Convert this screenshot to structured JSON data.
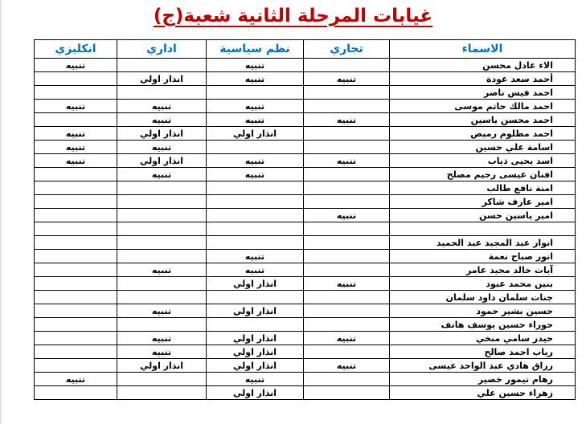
{
  "page": {
    "title": "غيابات المرحلة الثانية شعبة(ج)"
  },
  "colors": {
    "title_red": "#C00000",
    "header_blue": "#0070C0",
    "border_black": "#000000",
    "background": "#FFFFFF"
  },
  "status_labels": {
    "notice": "تنبيه",
    "first_warning": "انذار اولي"
  },
  "table": {
    "headers": [
      "الاسماء",
      "تجاري",
      "نظم سياسية",
      "اداري",
      "انكليزي"
    ],
    "rows": [
      [
        "الاء عادل محسن",
        "",
        "تنبيه",
        "",
        "تنبيه"
      ],
      [
        "أحمد سعد عودة",
        "تنبيه",
        "تنبيه",
        "انذار اولي",
        ""
      ],
      [
        "احمد قيس ناصر",
        "",
        "",
        "",
        ""
      ],
      [
        "احمد مالك حاتم موسى",
        "",
        "تنبيه",
        "تنبيه",
        "تنبيه"
      ],
      [
        "احمد محسن ياسين",
        "تنبيه",
        "تنبيه",
        "تنبيه",
        ""
      ],
      [
        "احمد مظلوم رميض",
        "",
        "انذار اولي",
        "انذار اولي",
        "تنبيه"
      ],
      [
        "اسامة علي حسين",
        "",
        "",
        "تنبيه",
        "تنبيه"
      ],
      [
        "اسد يحيى ذياب",
        "تنبيه",
        "تنبيه",
        "انذار اولي",
        "تنبيه"
      ],
      [
        "افنان عيسى رحيم مصلح",
        "",
        "تنبيه",
        "تنبيه",
        ""
      ],
      [
        "امنة نافع طالب",
        "",
        "",
        "",
        ""
      ],
      [
        "امير عارف شاكر",
        "",
        "",
        "",
        ""
      ],
      [
        "امير ياسين حسن",
        "تنبيه",
        "",
        "",
        ""
      ],
      [
        "",
        "",
        "",
        "",
        ""
      ],
      [
        "انوار عبد المجيد عبد الحميد",
        "",
        "",
        "",
        ""
      ],
      [
        "انور صباح نعمة",
        "",
        "تنبيه",
        "",
        ""
      ],
      [
        "آيات خالد مجيد عامر",
        "",
        "تنبيه",
        "تنبيه",
        ""
      ],
      [
        "بنين محمد عبود",
        "تنبيه",
        "انذار اولي",
        "",
        ""
      ],
      [
        "جنات سلمان داود سلمان",
        "",
        "",
        "",
        ""
      ],
      [
        "حسين بشير حمود",
        "",
        "انذار اولي",
        "تنبيه",
        ""
      ],
      [
        "حوراء حسين يوسف هاتف",
        "",
        "",
        "",
        ""
      ],
      [
        "حيدر سامي منخي",
        "تنبيه",
        "انذار اولي",
        "تنبيه",
        ""
      ],
      [
        "رياب احمد صالح",
        "",
        "انذار اولي",
        "تنبيه",
        ""
      ],
      [
        "رزاق هادي عبد الواحد عيسى",
        "تنبيه",
        "انذار اولي",
        "انذار اولي",
        ""
      ],
      [
        "رهام تيمور خضير",
        "",
        "تنبيه",
        "",
        "تنبيه"
      ],
      [
        "زهراء حسين علي",
        "",
        "انذار اولي",
        "",
        ""
      ]
    ]
  }
}
